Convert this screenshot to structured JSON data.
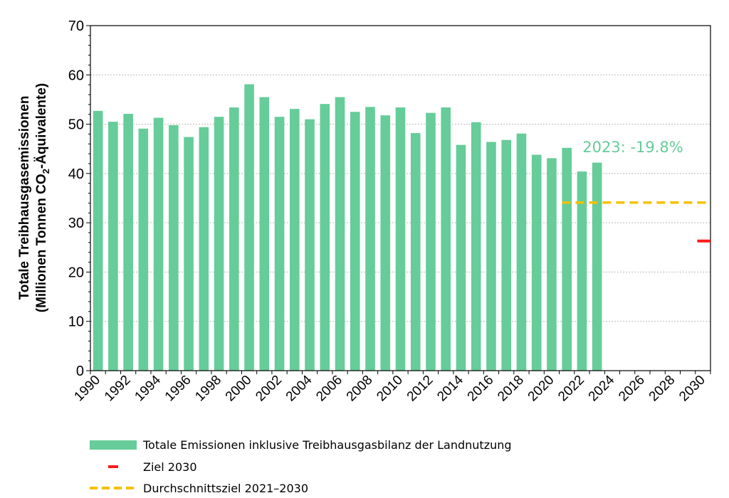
{
  "chart_data": {
    "type": "bar",
    "title": "",
    "xlabel": "",
    "ylabel_line1": "Totale Treibhausgasemissionen",
    "ylabel_line2_prefix": "(Millionen Tonnen CO",
    "ylabel_line2_sub": "2",
    "ylabel_line2_suffix": "-Äquivalente)",
    "ylim": [
      0,
      70
    ],
    "yticks": [
      0,
      10,
      20,
      30,
      40,
      50,
      60,
      70
    ],
    "xlim": [
      1990,
      2030
    ],
    "xticks": [
      "1990",
      "1992",
      "1994",
      "1996",
      "1998",
      "2000",
      "2002",
      "2004",
      "2006",
      "2008",
      "2010",
      "2012",
      "2014",
      "2016",
      "2018",
      "2020",
      "2022",
      "2024",
      "2026",
      "2028",
      "2030"
    ],
    "grid": true,
    "legend_position": "bottom",
    "series": [
      {
        "name": "Totale Emissionen inklusive Treibhausgasbilanz der Landnutzung",
        "color": "#66cc99",
        "years": [
          1990,
          1991,
          1992,
          1993,
          1994,
          1995,
          1996,
          1997,
          1998,
          1999,
          2000,
          2001,
          2002,
          2003,
          2004,
          2005,
          2006,
          2007,
          2008,
          2009,
          2010,
          2011,
          2012,
          2013,
          2014,
          2015,
          2016,
          2017,
          2018,
          2019,
          2020,
          2021,
          2022,
          2023
        ],
        "values": [
          52.7,
          50.5,
          52.1,
          49.1,
          51.3,
          49.8,
          47.4,
          49.4,
          51.5,
          53.4,
          58.1,
          55.5,
          51.5,
          53.1,
          51.0,
          54.1,
          55.5,
          52.5,
          53.5,
          51.8,
          53.4,
          48.2,
          52.3,
          53.4,
          45.8,
          50.4,
          46.4,
          46.8,
          48.1,
          43.8,
          43.1,
          45.2,
          40.4,
          42.2
        ]
      },
      {
        "name": "Ziel 2030",
        "color": "#ff1a1a",
        "year": 2030,
        "value": 26.3
      },
      {
        "name": "Durchschnittsziel 2021–2030",
        "color": "#f5c000",
        "from": 2021,
        "to": 2030,
        "value": 34.1
      }
    ],
    "annotation": {
      "text": "2023: -19.8%",
      "color": "#66cc99"
    }
  }
}
